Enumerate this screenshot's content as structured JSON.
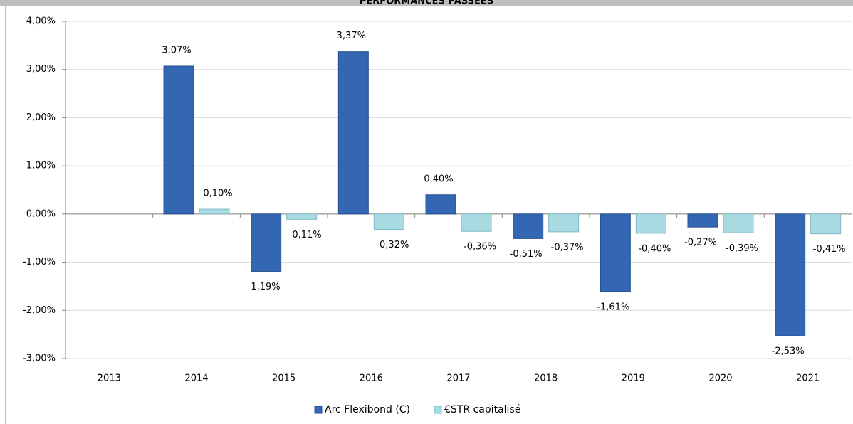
{
  "chart_data": {
    "type": "bar",
    "title": "PERFORMANCES PASSÉES",
    "categories": [
      "2013",
      "2014",
      "2015",
      "2016",
      "2017",
      "2018",
      "2019",
      "2020",
      "2021"
    ],
    "series": [
      {
        "name": "Arc Flexibond (C)",
        "color": "#3366b3",
        "values": [
          null,
          3.07,
          -1.19,
          3.37,
          0.4,
          -0.51,
          -1.61,
          -0.27,
          -2.53
        ],
        "value_labels": [
          null,
          "3,07%",
          "-1,19%",
          "3,37%",
          "0,40%",
          "-0,51%",
          "-1,61%",
          "-0,27%",
          "-2,53%"
        ]
      },
      {
        "name": "€STR capitalisé",
        "color": "#a9dbe3",
        "values": [
          null,
          0.1,
          -0.11,
          -0.32,
          -0.36,
          -0.37,
          -0.4,
          -0.39,
          -0.41
        ],
        "value_labels": [
          null,
          "0,10%",
          "-0,11%",
          "-0,32%",
          "-0,36%",
          "-0,37%",
          "-0,40%",
          "-0,39%",
          "-0,41%"
        ]
      }
    ],
    "ylim": [
      -3,
      4
    ],
    "yticks": [
      {
        "value": -3,
        "label": "-3,00%"
      },
      {
        "value": -2,
        "label": "-2,00%"
      },
      {
        "value": -1,
        "label": "-1,00%"
      },
      {
        "value": 0,
        "label": "0,00%"
      },
      {
        "value": 1,
        "label": "1,00%"
      },
      {
        "value": 2,
        "label": "2,00%"
      },
      {
        "value": 3,
        "label": "3,00%"
      },
      {
        "value": 4,
        "label": "4,00%"
      }
    ],
    "grid": true,
    "legend": "bottom"
  }
}
